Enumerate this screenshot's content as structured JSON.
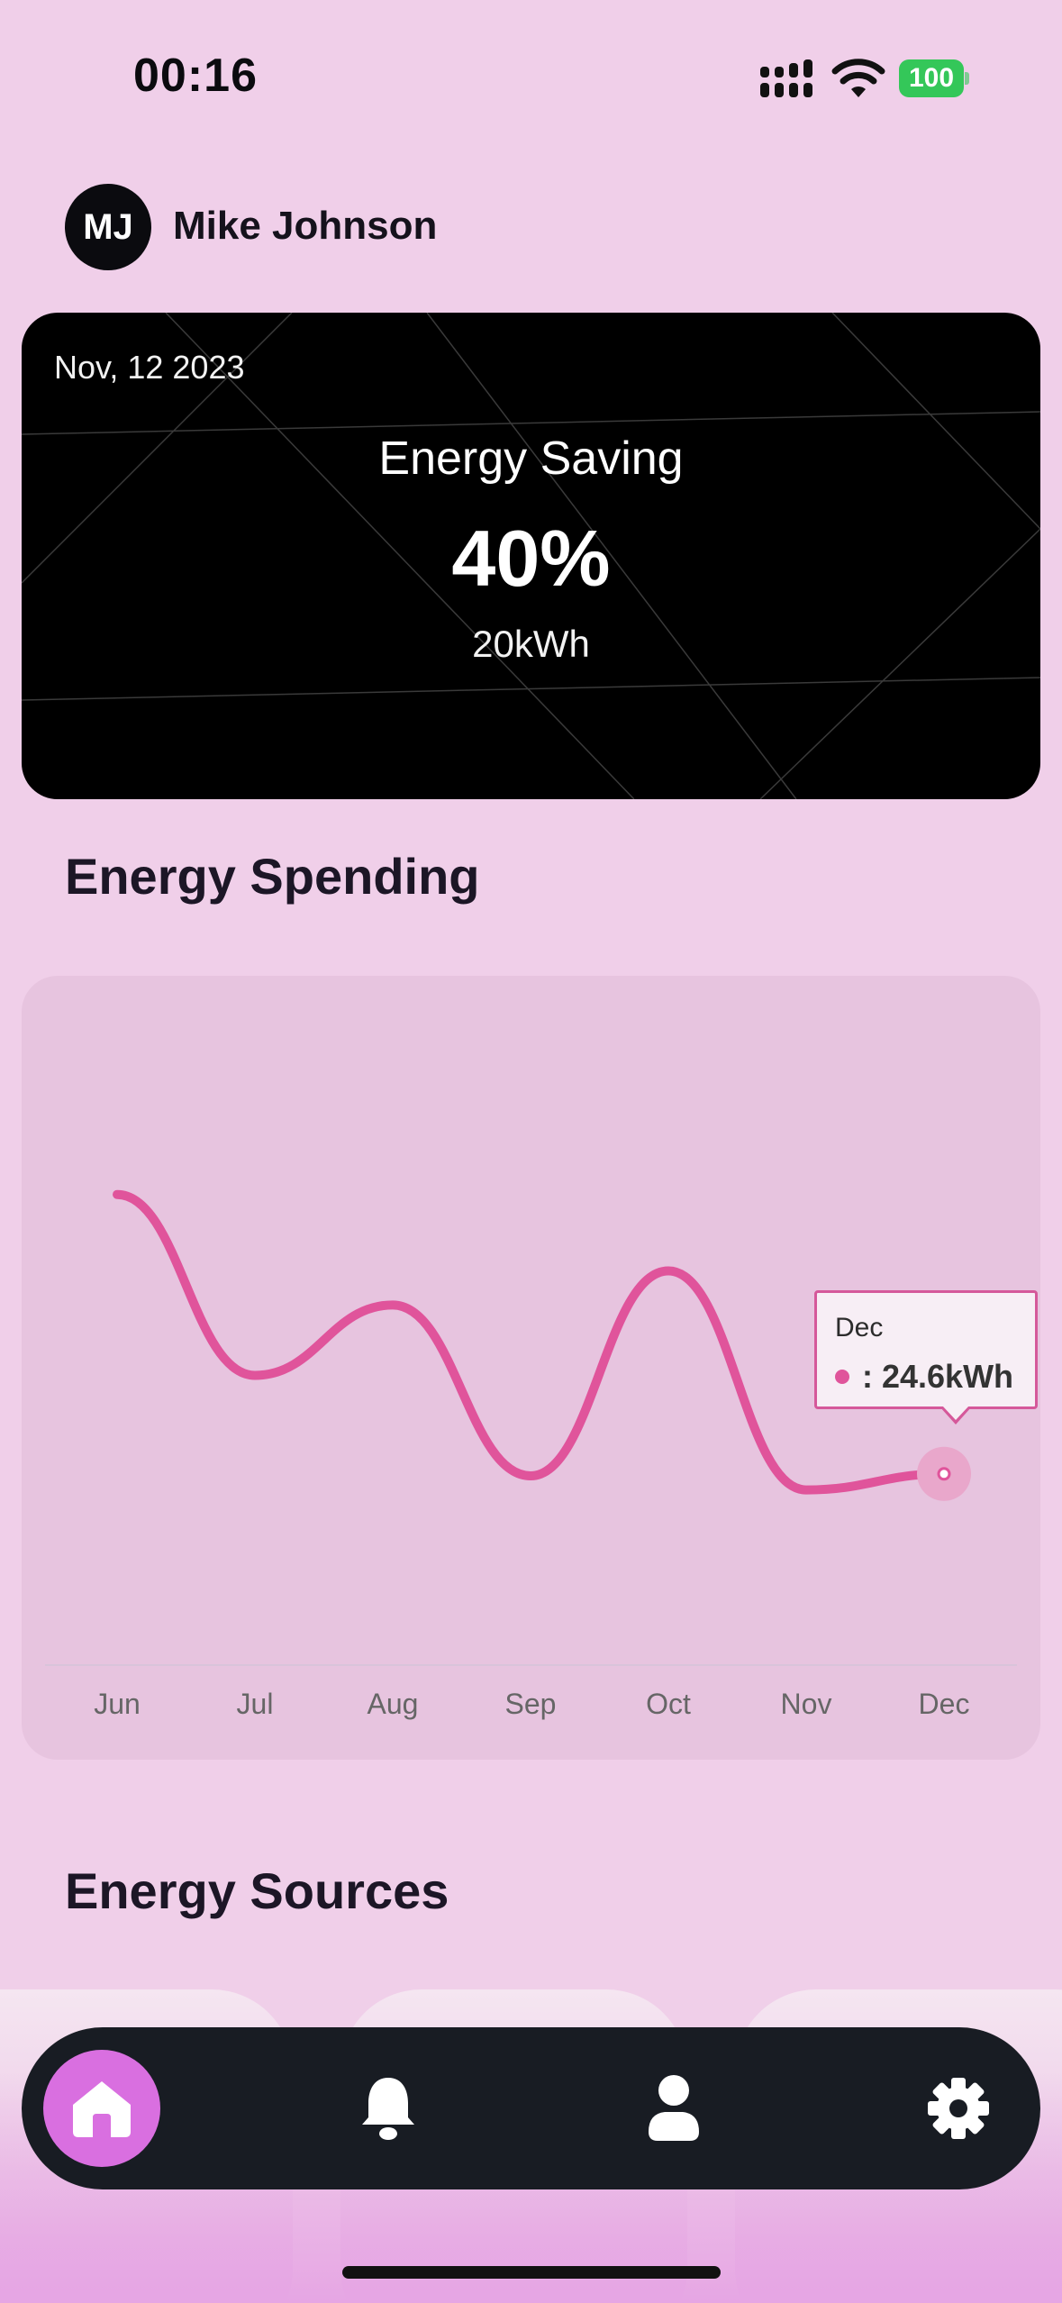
{
  "status_bar": {
    "time": "00:16",
    "battery": "100"
  },
  "profile": {
    "initials": "MJ",
    "name": "Mike Johnson"
  },
  "saving_card": {
    "date": "Nov, 12 2023",
    "title": "Energy Saving",
    "percent": "40%",
    "amount": "20kWh"
  },
  "sections": {
    "spending_title": "Energy Spending",
    "sources_title": "Energy Sources"
  },
  "chart_data": {
    "type": "line",
    "title": "Energy Spending",
    "categories": [
      "Jun",
      "Jul",
      "Aug",
      "Sep",
      "Oct",
      "Nov",
      "Dec"
    ],
    "series": [
      {
        "values": [
          38.5,
          29.5,
          33.0,
          24.5,
          34.7,
          23.8,
          24.6
        ]
      }
    ],
    "ylim": [
      18,
      44
    ],
    "grid": false,
    "highlight": {
      "category": "Dec",
      "label": "Dec",
      "value_text": ": 24.6kWh"
    },
    "line_color": "#e0549b"
  },
  "tabs": [
    {
      "icon": "home-icon",
      "active": true
    },
    {
      "icon": "bell-icon",
      "active": false
    },
    {
      "icon": "user-icon",
      "active": false
    },
    {
      "icon": "gear-icon",
      "active": false
    }
  ],
  "colors": {
    "background": "#f0cfe9",
    "accent": "#e0549b",
    "tab_active": "#d96fe0",
    "tab_bar": "#181c23"
  }
}
